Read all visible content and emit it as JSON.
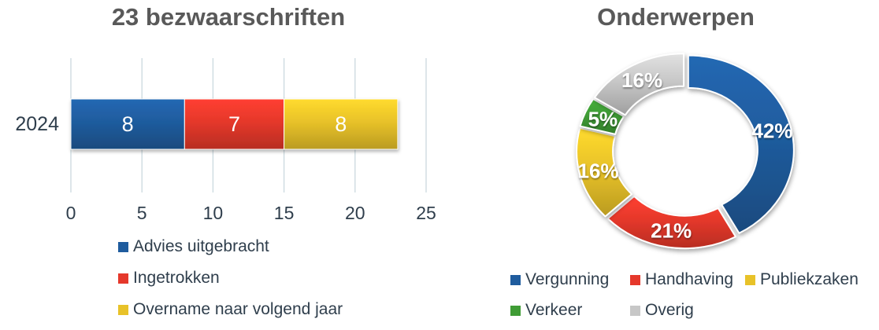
{
  "chart_data": [
    {
      "type": "bar",
      "orientation": "horizontal",
      "stacked": true,
      "title": "23 bezwaarschriften",
      "categories": [
        "2024"
      ],
      "series": [
        {
          "name": "Advies uitgebracht",
          "color": "#1F5C9E",
          "values": [
            8
          ]
        },
        {
          "name": "Ingetrokken",
          "color": "#E5382B",
          "values": [
            7
          ]
        },
        {
          "name": "Overname naar volgend jaar",
          "color": "#E8C229",
          "values": [
            8
          ]
        }
      ],
      "xlim": [
        0,
        25
      ],
      "xticks": [
        0,
        5,
        10,
        15,
        20,
        25
      ],
      "grid": true,
      "legend_position": "bottom-left",
      "style": {
        "grid_color": "#CBD9DF",
        "tick_color": "#2F3E4C",
        "title_color": "#595959",
        "legend_text_color": "#2F3E4C",
        "value_label_color": "#FFFFFF"
      }
    },
    {
      "type": "pie",
      "donut": true,
      "title": "Onderwerpen",
      "labels": [
        "Vergunning",
        "Handhaving",
        "Publiekzaken",
        "Verkeer",
        "Overig"
      ],
      "values": [
        42,
        21,
        16,
        5,
        16
      ],
      "value_labels": [
        "42%",
        "21%",
        "16%",
        "5%",
        "16%"
      ],
      "colors": [
        "#1F5C9E",
        "#E5382B",
        "#E8C229",
        "#3F9C35",
        "#C7C7C7"
      ],
      "start_angle_deg": 0,
      "legend_position": "bottom",
      "style": {
        "value_label_color": "#FFFFFF",
        "title_color": "#595959",
        "legend_text_color": "#2F3E4C"
      }
    }
  ]
}
